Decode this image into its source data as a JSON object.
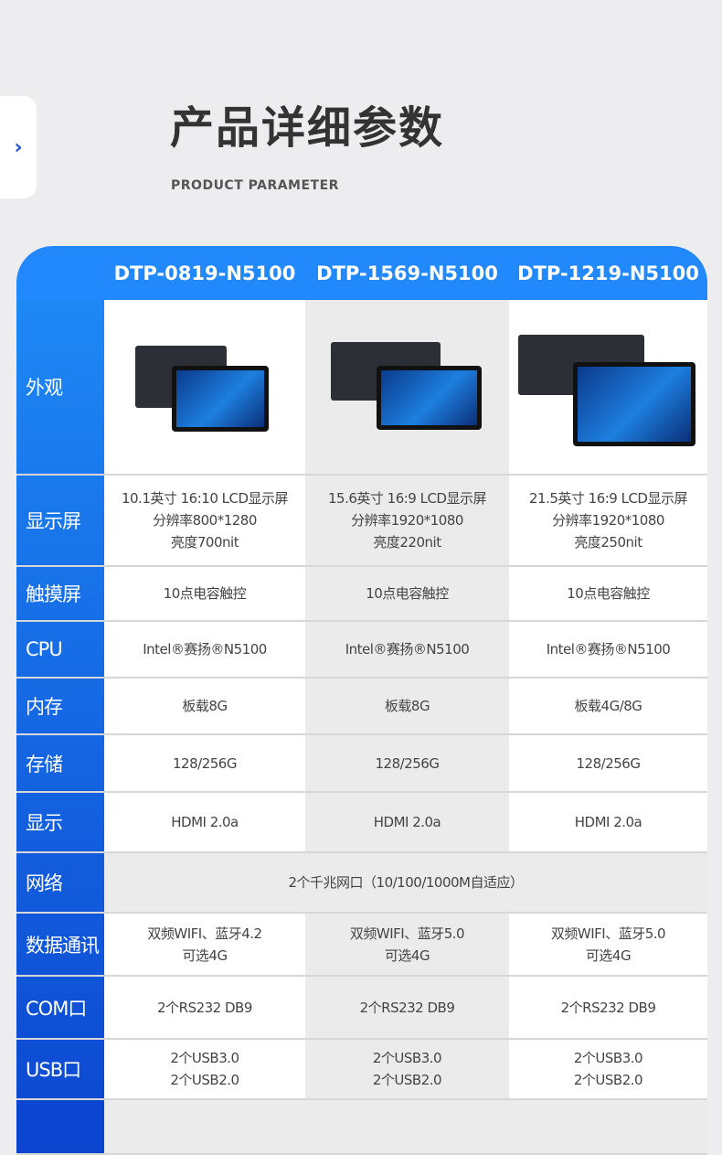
{
  "nav": {
    "next_icon": "chevron-right-icon",
    "glyph": "›"
  },
  "page": {
    "title": "产品详细参数",
    "subtitle": "PRODUCT PARAMETER"
  },
  "models": [
    "DTP-0819-N5100",
    "DTP-1569-N5100",
    "DTP-1219-N5100"
  ],
  "colors": {
    "header": "#2189fb",
    "label_top": "#1e88f5",
    "label_bottom": "#0c46d0"
  },
  "rows": [
    {
      "label": "外观",
      "type": "image"
    },
    {
      "label": "显示屏",
      "values": [
        "10.1英寸 16:10 LCD显示屏\n分辨率800*1280\n亮度700nit",
        "15.6英寸 16:9 LCD显示屏\n分辨率1920*1080\n亮度220nit",
        "21.5英寸 16:9 LCD显示屏\n分辨率1920*1080\n亮度250nit"
      ]
    },
    {
      "label": "触摸屏",
      "values": [
        "10点电容触控",
        "10点电容触控",
        "10点电容触控"
      ]
    },
    {
      "label": "CPU",
      "values": [
        "Intel®赛扬®N5100",
        "Intel®赛扬®N5100",
        "Intel®赛扬®N5100"
      ]
    },
    {
      "label": "内存",
      "values": [
        "板载8G",
        "板载8G",
        "板载4G/8G"
      ]
    },
    {
      "label": "存储",
      "values": [
        "128/256G",
        "128/256G",
        "128/256G"
      ]
    },
    {
      "label": "显示",
      "values": [
        "HDMI 2.0a",
        "HDMI 2.0a",
        "HDMI 2.0a"
      ]
    },
    {
      "label": "网络",
      "span": "2个千兆网口（10/100/1000M自适应）"
    },
    {
      "label": "数据通讯",
      "values": [
        "双频WIFI、蓝牙4.2\n可选4G",
        "双频WIFI、蓝牙5.0\n可选4G",
        "双频WIFI、蓝牙5.0\n可选4G"
      ]
    },
    {
      "label": "COM口",
      "values": [
        "2个RS232 DB9",
        "2个RS232 DB9",
        "2个RS232 DB9"
      ]
    },
    {
      "label": "USB口",
      "values": [
        "2个USB3.0\n2个USB2.0",
        "2个USB3.0\n2个USB2.0",
        "2个USB3.0\n2个USB2.0"
      ]
    }
  ]
}
